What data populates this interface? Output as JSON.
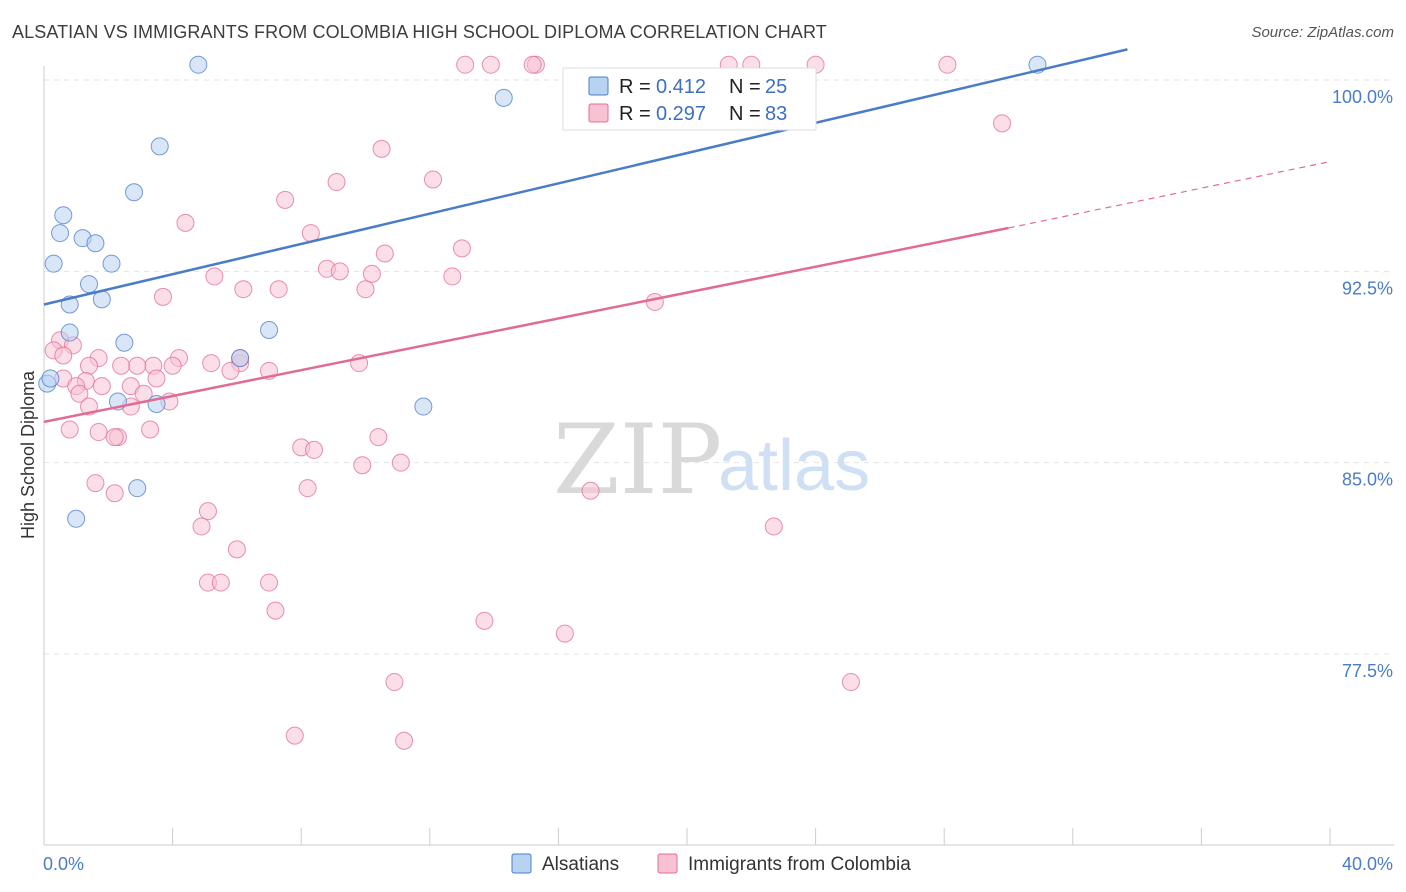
{
  "header": {
    "title": "ALSATIAN VS IMMIGRANTS FROM COLOMBIA HIGH SCHOOL DIPLOMA CORRELATION CHART",
    "source": "Source: ZipAtlas.com"
  },
  "watermark": {
    "zip": "ZIP",
    "atlas": "atlas"
  },
  "legend": {
    "rows": [
      {
        "r_label": "R = ",
        "r_value": "0.412",
        "n_label": "N = ",
        "n_value": "25"
      },
      {
        "r_label": "R = ",
        "r_value": "0.297",
        "n_label": "N = ",
        "n_value": "83"
      }
    ]
  },
  "bottom_legend": {
    "items": [
      "Alsatians",
      "Immigrants from Colombia"
    ]
  },
  "chart_data": {
    "type": "scatter",
    "title": "ALSATIAN VS IMMIGRANTS FROM COLOMBIA HIGH SCHOOL DIPLOMA CORRELATION CHART",
    "xlabel": "",
    "ylabel": "High School Diploma",
    "xlim": [
      0,
      40
    ],
    "ylim": [
      70,
      101
    ],
    "x_tick_labels": [
      "0.0%",
      "40.0%"
    ],
    "y_ticks": [
      100.0,
      92.5,
      85.0,
      77.5
    ],
    "y_tick_labels": [
      "100.0%",
      "92.5%",
      "85.0%",
      "77.5%"
    ],
    "colors": {
      "blue": "#4a7cc8",
      "blue_fill": "#b8d2f2",
      "pink": "#e06c96",
      "pink_fill": "#f7c3d3"
    },
    "series": [
      {
        "name": "Alsatians",
        "color": "#4a7cc8",
        "fill": "#b8d2f2",
        "x": [
          4.8,
          14.3,
          3.6,
          2.8,
          0.6,
          0.5,
          1.2,
          1.6,
          0.3,
          2.1,
          1.4,
          0.8,
          1.8,
          0.8,
          2.5,
          7.0,
          6.1,
          0.1,
          2.3,
          3.5,
          11.8,
          2.9,
          1.0,
          30.9,
          0.2
        ],
        "y": [
          100.6,
          99.3,
          97.4,
          95.6,
          94.7,
          94.0,
          93.8,
          93.6,
          92.8,
          92.8,
          92.0,
          91.2,
          91.4,
          90.1,
          89.7,
          90.2,
          89.1,
          88.1,
          87.4,
          87.3,
          87.2,
          84.0,
          82.8,
          100.6,
          88.3
        ]
      },
      {
        "name": "Immigrants from Colombia",
        "color": "#e06c96",
        "fill": "#f7c3d3",
        "x": [
          13.1,
          13.9,
          15.3,
          15.2,
          21.3,
          22.0,
          24.0,
          28.1,
          29.8,
          10.5,
          12.1,
          9.1,
          7.5,
          4.4,
          8.3,
          13.0,
          10.6,
          8.8,
          9.2,
          10.2,
          5.3,
          12.7,
          6.2,
          3.7,
          7.3,
          10.0,
          19.0,
          0.5,
          0.9,
          0.3,
          0.6,
          1.7,
          4.2,
          1.4,
          2.4,
          3.4,
          2.9,
          5.2,
          6.1,
          5.8,
          0.6,
          1.3,
          1.0,
          1.8,
          1.1,
          4.0,
          3.5,
          2.7,
          3.1,
          7.0,
          6.1,
          9.8,
          1.4,
          3.9,
          2.7,
          0.8,
          3.3,
          1.7,
          10.4,
          2.3,
          2.2,
          8.0,
          8.4,
          11.1,
          9.9,
          8.2,
          17.0,
          5.1,
          4.9,
          22.7,
          6.0,
          7.0,
          5.1,
          5.5,
          7.2,
          13.7,
          25.1,
          10.9,
          7.8,
          11.2,
          16.2,
          2.2,
          1.6
        ],
        "y": [
          100.6,
          100.6,
          100.6,
          100.6,
          100.6,
          100.6,
          100.6,
          100.6,
          98.3,
          97.3,
          96.1,
          96.0,
          95.3,
          94.4,
          94.0,
          93.4,
          93.2,
          92.6,
          92.5,
          92.4,
          92.3,
          92.3,
          91.8,
          91.5,
          91.8,
          91.8,
          91.3,
          89.8,
          89.6,
          89.4,
          89.2,
          89.1,
          89.1,
          88.8,
          88.8,
          88.8,
          88.8,
          88.9,
          88.9,
          88.6,
          88.3,
          88.2,
          88.0,
          88.0,
          87.7,
          88.8,
          88.3,
          88.0,
          87.7,
          88.6,
          89.1,
          88.9,
          87.2,
          87.4,
          87.2,
          86.3,
          86.3,
          86.2,
          86.0,
          86.0,
          86.0,
          85.6,
          85.5,
          85.0,
          84.9,
          84.0,
          83.9,
          83.1,
          82.5,
          82.5,
          81.6,
          80.3,
          80.3,
          80.3,
          79.2,
          78.8,
          76.4,
          76.4,
          74.3,
          74.1,
          78.3,
          83.8,
          84.2
        ]
      }
    ],
    "trend_lines": [
      {
        "series": "Alsatians",
        "x": [
          0,
          33.7
        ],
        "y": [
          91.2,
          101.2
        ]
      },
      {
        "series": "Immigrants from Colombia",
        "x": [
          0,
          30.0
        ],
        "y": [
          86.6,
          94.2
        ],
        "dashed_extension_to": [
          40,
          96.8
        ]
      }
    ]
  }
}
